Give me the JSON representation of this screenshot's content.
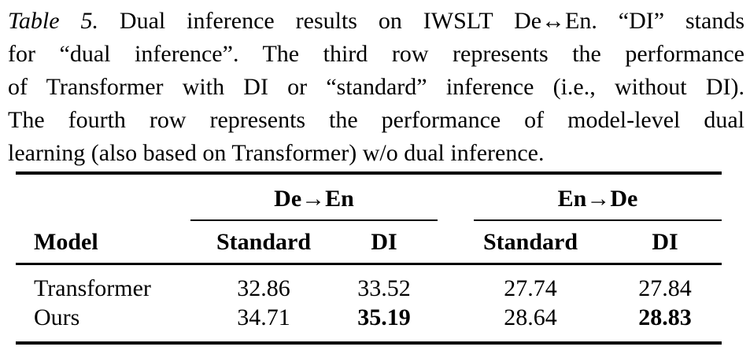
{
  "caption": {
    "title_label": "Table 5.",
    "lines": [
      "Dual inference results on IWSLT De↔En. “DI” stands",
      "for “dual inference”. The third row represents the performance",
      "of Transformer with DI or “standard” inference (i.e., without DI).",
      "The fourth row represents the performance of model-level dual",
      "learning (also based on Transformer) w/o dual inference."
    ]
  },
  "table": {
    "group_headers": [
      {
        "label": "De→En"
      },
      {
        "label": "En→De"
      }
    ],
    "columns": [
      "Model",
      "Standard",
      "DI",
      "Standard",
      "DI"
    ],
    "rows": [
      {
        "model": "Transformer",
        "values": [
          "32.86",
          "33.52",
          "27.74",
          "27.84"
        ],
        "bold": [
          false,
          false,
          false,
          false
        ]
      },
      {
        "model": "Ours",
        "values": [
          "34.71",
          "35.19",
          "28.64",
          "28.83"
        ],
        "bold": [
          false,
          true,
          false,
          true
        ]
      }
    ]
  },
  "chart_data": {
    "type": "table",
    "title": "Table 5. Dual inference results on IWSLT De↔En",
    "column_groups": [
      "De→En",
      "En→De"
    ],
    "columns": [
      "Model",
      "De→En Standard",
      "De→En DI",
      "En→De Standard",
      "En→De DI"
    ],
    "rows": [
      [
        "Transformer",
        32.86,
        33.52,
        27.74,
        27.84
      ],
      [
        "Ours",
        34.71,
        35.19,
        28.64,
        28.83
      ]
    ],
    "bold_values": [
      35.19,
      28.83
    ]
  },
  "colors": {
    "text": "#000000",
    "background": "#ffffff",
    "rule": "#000000"
  }
}
